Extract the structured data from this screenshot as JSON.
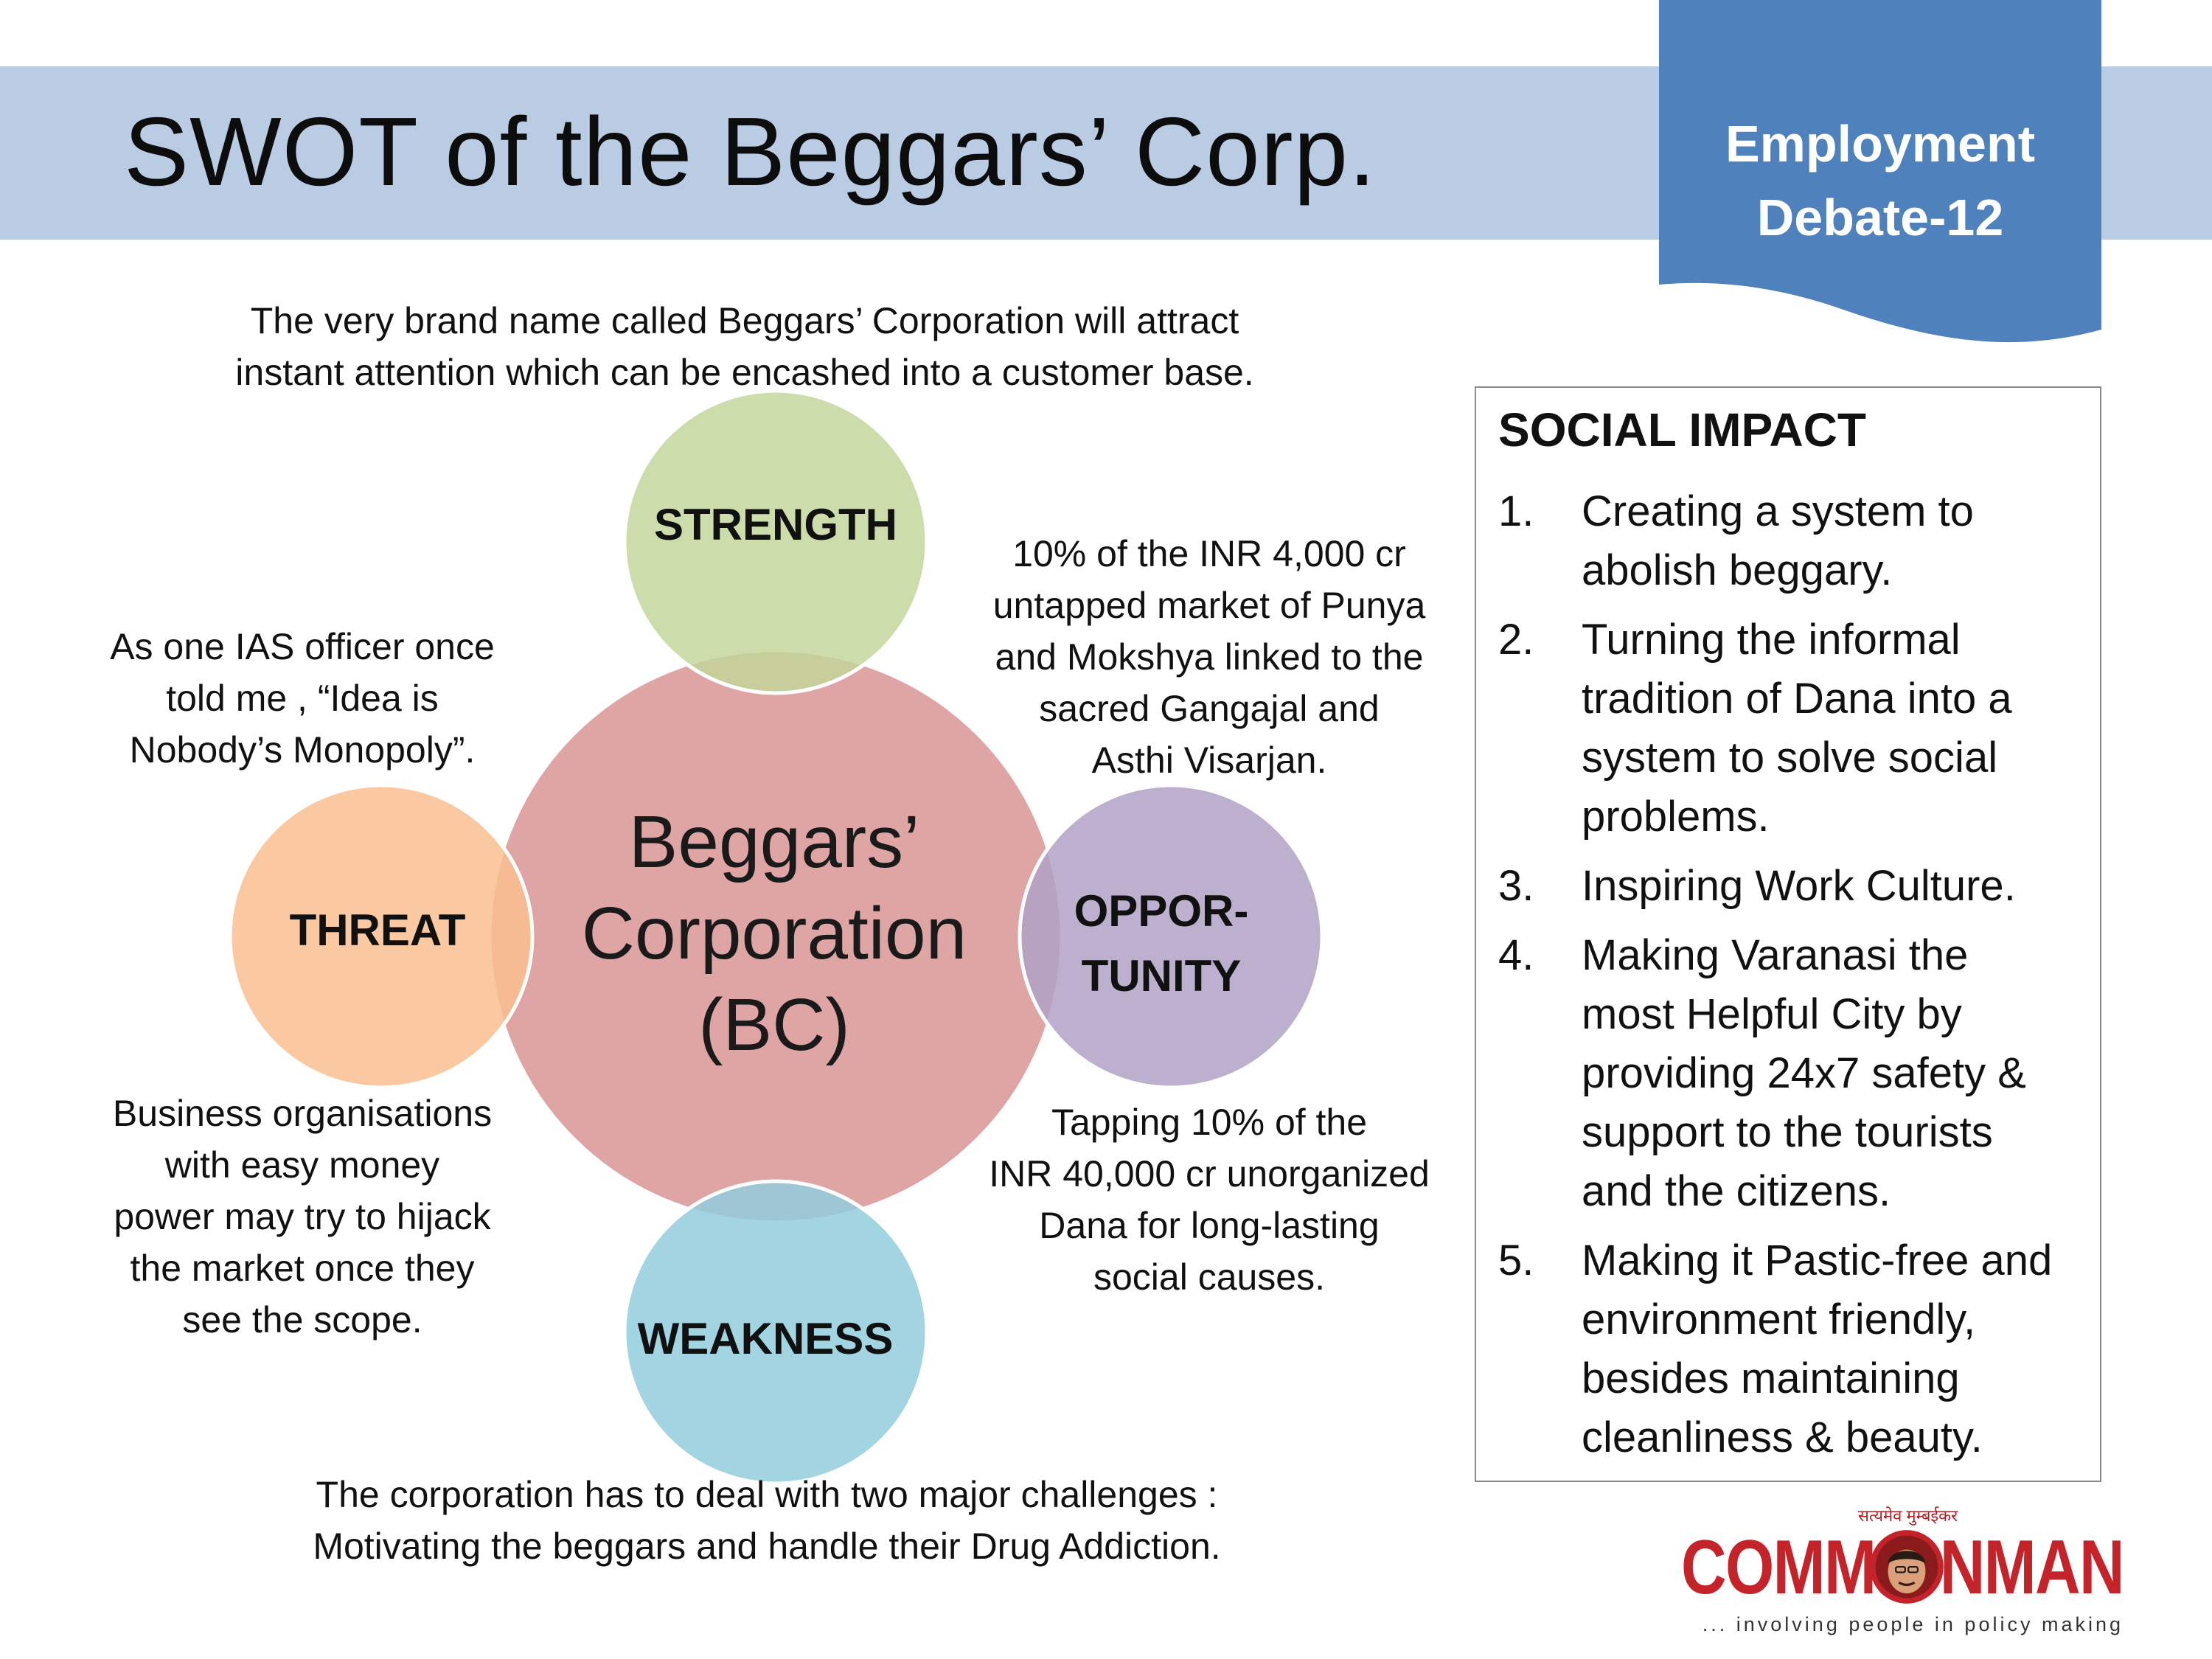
{
  "header": {
    "title": "SWOT of the Beggars’ Corp.",
    "badge_lines": [
      "Employment",
      "Debate-12"
    ]
  },
  "colors": {
    "title_band": "#b9cce4",
    "badge": "#4f81bd",
    "center_circle": "#d99494",
    "strength_circle": "#c3d69b",
    "opportunity_circle": "#b2a2c7",
    "weakness_circle": "#93cddd",
    "threat_circle": "#fac090",
    "logo_red": "#c4232a"
  },
  "swot": {
    "center": [
      "Beggars’",
      "Corporation",
      "(BC)"
    ],
    "strength": {
      "label": "STRENGTH",
      "note": [
        "The very brand name called Beggars’ Corporation will attract",
        "instant attention which can be encashed into a customer base."
      ]
    },
    "opportunity": {
      "label_lines": [
        "OPPOR-",
        "TUNITY"
      ],
      "note_upper": [
        "10% of the INR 4,000 cr",
        "untapped market of Punya",
        "and Mokshya linked to the",
        "sacred Gangajal  and",
        "Asthi Visarjan."
      ],
      "note_lower": [
        "Tapping 10% of  the",
        "INR 40,000 cr unorganized",
        "Dana for long-lasting",
        "social causes."
      ]
    },
    "threat": {
      "label": "THREAT",
      "note_upper": [
        "As  one IAS officer once",
        "told me , “Idea is",
        "Nobody’s Monopoly”."
      ],
      "note_lower": [
        "Business organisations",
        "with easy  money",
        "power may try to hijack",
        "the market  once they",
        "see the scope."
      ]
    },
    "weakness": {
      "label": "WEAKNESS",
      "note": [
        "The corporation has to deal with two major challenges :",
        "Motivating the beggars and  handle their Drug Addiction."
      ]
    }
  },
  "social_impact": {
    "heading": "SOCIAL IMPACT",
    "items": [
      {
        "num": "1.",
        "lines": [
          "Creating a system to",
          "abolish beggary."
        ]
      },
      {
        "num": "2.",
        "lines": [
          "Turning the informal",
          "tradition of Dana into a",
          "system to solve social",
          "problems."
        ]
      },
      {
        "num": "3.",
        "lines": [
          "Inspiring Work Culture."
        ]
      },
      {
        "num": "4.",
        "lines": [
          "Making Varanasi the",
          "most Helpful City by",
          "providing 24x7 safety &",
          "support to the tourists",
          "and the citizens."
        ]
      },
      {
        "num": "5.",
        "lines": [
          "Making it Pastic-free and",
          "environment friendly,",
          "besides maintaining",
          "cleanliness & beauty."
        ]
      }
    ]
  },
  "logo": {
    "arc_text": "सत्यमेव मुम्बईकर",
    "word_left": "COMM",
    "word_right": "NMAN",
    "tagline": "... involving people in policy making"
  }
}
